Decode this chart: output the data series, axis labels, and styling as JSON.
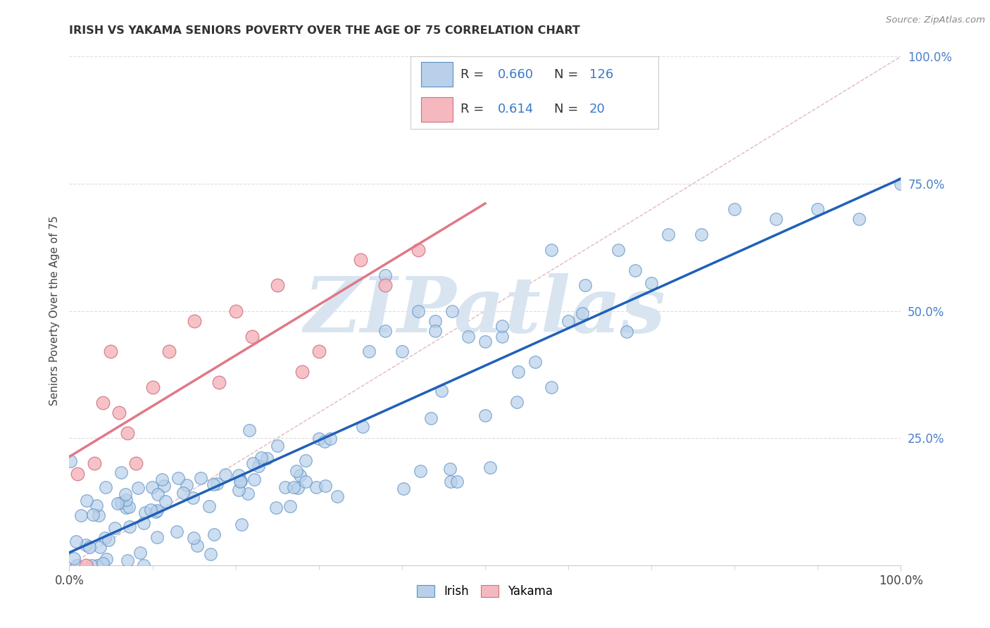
{
  "title": "IRISH VS YAKAMA SENIORS POVERTY OVER THE AGE OF 75 CORRELATION CHART",
  "source": "Source: ZipAtlas.com",
  "ylabel": "Seniors Poverty Over the Age of 75",
  "irish_R": 0.66,
  "irish_N": 126,
  "yakama_R": 0.614,
  "yakama_N": 20,
  "irish_color": "#b8d0ea",
  "irish_edge_color": "#5a8fc4",
  "yakama_color": "#f5b8be",
  "yakama_edge_color": "#d07080",
  "irish_line_color": "#2060b8",
  "yakama_line_color": "#e07888",
  "dashed_line_color": "#e0b0b8",
  "right_tick_color": "#4a80c8",
  "background_color": "#ffffff",
  "watermark_color": "#d8e4f0",
  "legend_box_color": "#cccccc",
  "legend_value_color": "#3a7acc",
  "title_color": "#333333",
  "source_color": "#888888",
  "grid_color": "#dddddd",
  "spine_color": "#cccccc"
}
